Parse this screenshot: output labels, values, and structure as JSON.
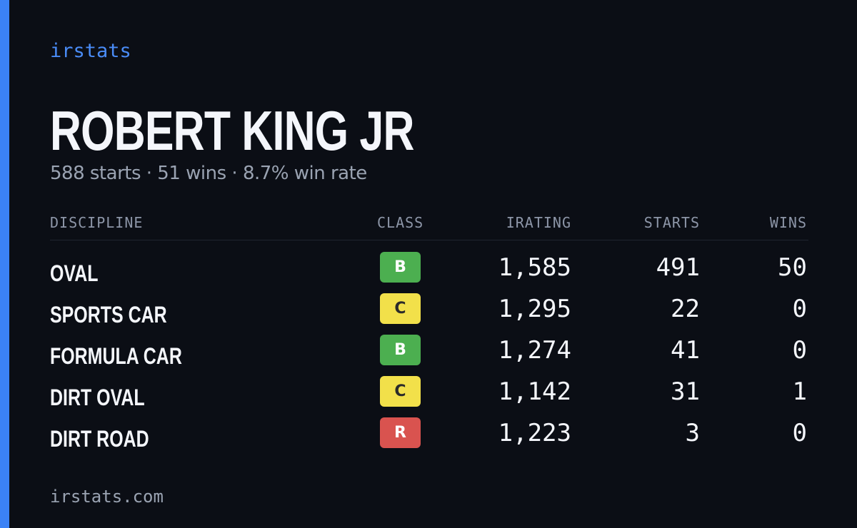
{
  "brand": "irstats",
  "driver": {
    "name": "ROBERT KING JR",
    "summary": "588 starts · 51 wins · 8.7% win rate"
  },
  "table": {
    "headers": {
      "discipline": "DISCIPLINE",
      "class": "CLASS",
      "irating": "IRATING",
      "starts": "STARTS",
      "wins": "WINS"
    },
    "rows": [
      {
        "discipline": "OVAL",
        "class": "B",
        "irating": "1,585",
        "starts": "491",
        "wins": "50"
      },
      {
        "discipline": "SPORTS CAR",
        "class": "C",
        "irating": "1,295",
        "starts": "22",
        "wins": "0"
      },
      {
        "discipline": "FORMULA CAR",
        "class": "B",
        "irating": "1,274",
        "starts": "41",
        "wins": "0"
      },
      {
        "discipline": "DIRT OVAL",
        "class": "C",
        "irating": "1,142",
        "starts": "31",
        "wins": "1"
      },
      {
        "discipline": "DIRT ROAD",
        "class": "R",
        "irating": "1,223",
        "starts": "3",
        "wins": "0"
      }
    ]
  },
  "class_colors": {
    "R": {
      "bg": "#d9534f",
      "fg": "#ffffff"
    },
    "D": {
      "bg": "#f0883e",
      "fg": "#1a1a1a"
    },
    "C": {
      "bg": "#f2e04a",
      "fg": "#2a2a2a"
    },
    "B": {
      "bg": "#4caf50",
      "fg": "#ffffff"
    },
    "A": {
      "bg": "#3b82f6",
      "fg": "#ffffff"
    }
  },
  "colors": {
    "accent": "#3b82f6",
    "background": "#0b0e15"
  },
  "footer": {
    "url": "irstats.com"
  }
}
